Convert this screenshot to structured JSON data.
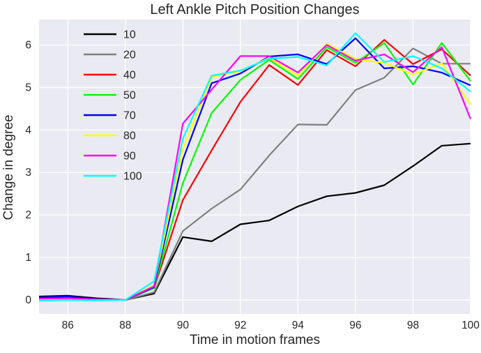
{
  "chart_data": {
    "type": "line",
    "title": "Left Ankle Pitch Position Changes",
    "xlabel": "Time in motion frames",
    "ylabel": "Change in degree",
    "x": [
      85,
      86,
      87,
      88,
      89,
      90,
      91,
      92,
      93,
      94,
      95,
      96,
      97,
      98,
      99,
      100
    ],
    "xticks": [
      86,
      88,
      90,
      92,
      94,
      96,
      98,
      100
    ],
    "yticks": [
      0,
      1,
      2,
      3,
      4,
      5,
      6
    ],
    "xlim": [
      85,
      100
    ],
    "ylim": [
      -0.33,
      6.6
    ],
    "grid": true,
    "legend_position": "upper left",
    "plot_bg_color": "#EAEAF2",
    "grid_color": "#FFFFFF",
    "text_color": "#262626",
    "series": [
      {
        "name": "10",
        "color": "#000000",
        "values": [
          0.08,
          0.1,
          0.04,
          0.0,
          0.15,
          1.48,
          1.38,
          1.78,
          1.87,
          2.2,
          2.44,
          2.52,
          2.7,
          3.15,
          3.63,
          3.68
        ]
      },
      {
        "name": "20",
        "color": "#808080",
        "values": [
          0.03,
          0.05,
          0.02,
          0.0,
          0.18,
          1.62,
          2.15,
          2.6,
          3.4,
          4.13,
          4.12,
          4.94,
          5.23,
          5.92,
          5.56,
          5.56
        ]
      },
      {
        "name": "40",
        "color": "#FF0000",
        "values": [
          0.02,
          0.03,
          0.01,
          0.0,
          0.28,
          2.35,
          3.52,
          4.66,
          5.53,
          5.06,
          5.88,
          5.5,
          6.12,
          5.55,
          5.9,
          5.28
        ]
      },
      {
        "name": "50",
        "color": "#00FF00",
        "values": [
          0.02,
          0.03,
          0.01,
          0.0,
          0.28,
          2.75,
          4.4,
          5.18,
          5.65,
          5.2,
          5.95,
          5.58,
          6.05,
          5.07,
          6.05,
          5.15
        ]
      },
      {
        "name": "70",
        "color": "#0000FF",
        "values": [
          0.06,
          0.08,
          0.02,
          0.0,
          0.3,
          3.3,
          5.1,
          5.33,
          5.73,
          5.78,
          5.55,
          6.16,
          5.45,
          5.5,
          5.35,
          5.05
        ]
      },
      {
        "name": "80",
        "color": "#FFFF00",
        "values": [
          0.02,
          0.03,
          0.01,
          0.0,
          0.35,
          3.55,
          5.25,
          5.38,
          5.7,
          5.28,
          6.03,
          5.67,
          5.58,
          5.31,
          5.57,
          4.6
        ]
      },
      {
        "name": "90",
        "color": "#FF00FF",
        "values": [
          0.03,
          0.04,
          0.01,
          0.0,
          0.32,
          4.15,
          4.95,
          5.74,
          5.74,
          5.35,
          6.0,
          5.63,
          5.78,
          5.36,
          5.95,
          4.26
        ]
      },
      {
        "name": "100",
        "color": "#00FFFF",
        "values": [
          -0.02,
          0.0,
          -0.01,
          0.0,
          0.44,
          3.8,
          5.28,
          5.4,
          5.68,
          5.72,
          5.52,
          6.28,
          5.6,
          5.74,
          5.45,
          4.9
        ]
      }
    ]
  }
}
